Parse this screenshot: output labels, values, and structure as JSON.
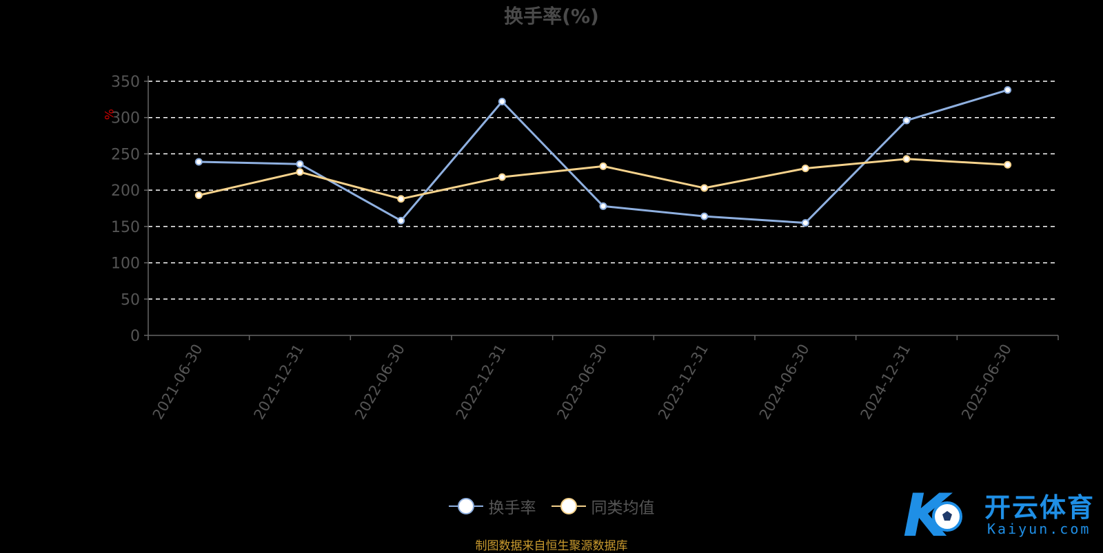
{
  "title": "换手率(%)",
  "unit_label": "%",
  "source_note": "制图数据来自恒生聚源数据库",
  "watermark": {
    "text": "开云体育",
    "sub": "Kaiyun.com",
    "mark": "K"
  },
  "colors": {
    "background": "#000000",
    "series_turnover": "#8fb0e0",
    "series_peer_avg": "#f5d28c",
    "grid": "#ffffff",
    "axis": "#666666",
    "tick_text": "#555555",
    "unit_label": "#cc0000",
    "source_text": "#c99a2e",
    "watermark": "#1f8fe6"
  },
  "legend": [
    {
      "name": "换手率",
      "color": "#8fb0e0"
    },
    {
      "name": "同类均值",
      "color": "#f5d28c"
    }
  ],
  "chart_data": {
    "type": "line",
    "title": "换手率(%)",
    "categories": [
      "2021-06-30",
      "2021-12-31",
      "2022-06-30",
      "2022-12-31",
      "2023-06-30",
      "2023-12-31",
      "2024-06-30",
      "2024-12-31",
      "2025-06-30"
    ],
    "series": [
      {
        "name": "换手率",
        "values": [
          239,
          236,
          158,
          322,
          178,
          164,
          155,
          296,
          338
        ]
      },
      {
        "name": "同类均值",
        "values": [
          193,
          225,
          188,
          218,
          233,
          203,
          230,
          243,
          235
        ]
      }
    ],
    "ylim": [
      0,
      350
    ],
    "yticks": [
      0,
      50,
      100,
      150,
      200,
      250,
      300,
      350
    ],
    "ylabel": "%",
    "grid": true,
    "legend_position": "bottom-center"
  }
}
